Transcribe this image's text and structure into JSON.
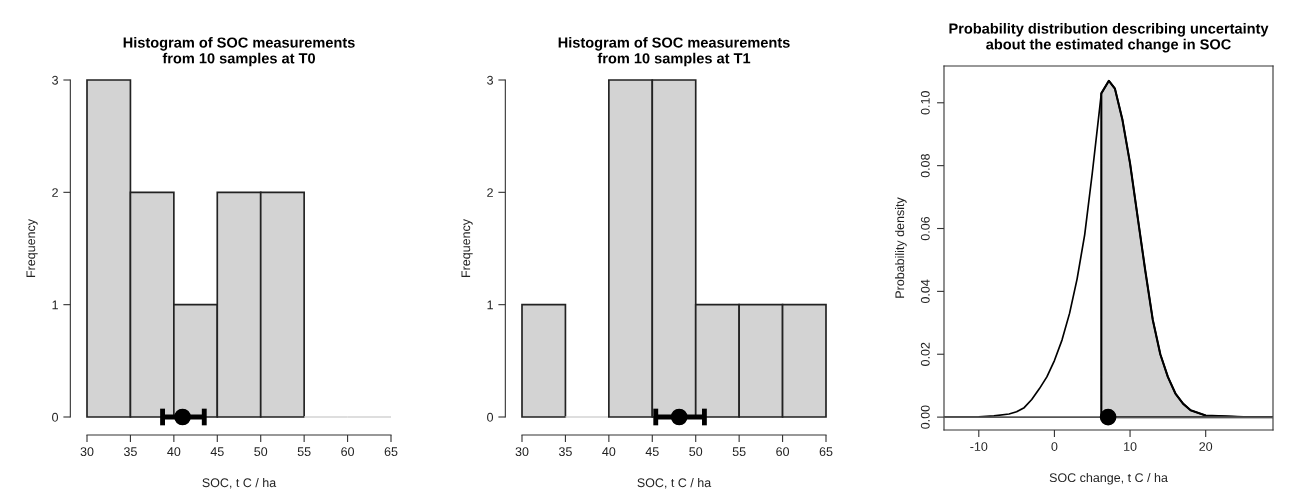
{
  "chart_data": [
    {
      "type": "histogram",
      "title": "Histogram of SOC measurements\nfrom 10 samples at T0",
      "xlabel": "SOC, t C / ha",
      "ylabel": "Frequency",
      "bins": [
        30,
        35,
        40,
        45,
        50,
        55,
        60,
        65
      ],
      "values": [
        3,
        2,
        1,
        2,
        2,
        0,
        0
      ],
      "color": "#d3d3d3",
      "xlim": [
        30,
        65
      ],
      "ylim": [
        0,
        3
      ],
      "xticks": [
        30,
        35,
        40,
        45,
        50,
        55,
        60,
        65
      ],
      "yticks": [
        0,
        1,
        2,
        3
      ],
      "series": [
        {
          "type": "scatter",
          "color": "#000000",
          "marker": "circle",
          "x": [
            41
          ],
          "values": [
            0
          ],
          "xerrors": [
            [
              38.7,
              43.5
            ]
          ]
        }
      ]
    },
    {
      "type": "histogram",
      "title": "Histogram of SOC measurements\nfrom 10 samples at T1",
      "xlabel": "SOC, t C / ha",
      "ylabel": "Frequency",
      "bins": [
        30,
        35,
        40,
        45,
        50,
        55,
        60,
        65
      ],
      "values": [
        1,
        0,
        3,
        3,
        1,
        1,
        1
      ],
      "color": "#d3d3d3",
      "xlim": [
        30,
        65
      ],
      "ylim": [
        0,
        3
      ],
      "xticks": [
        30,
        35,
        40,
        45,
        50,
        55,
        60,
        65
      ],
      "yticks": [
        0,
        1,
        2,
        3
      ],
      "series": [
        {
          "type": "scatter",
          "color": "#000000",
          "marker": "circle",
          "x": [
            48.1
          ],
          "values": [
            0
          ],
          "xerrors": [
            [
              45.4,
              51.0
            ]
          ]
        }
      ]
    },
    {
      "type": "area",
      "title": "Probability distribution describing uncertainty\nabout the estimated change in SOC",
      "xlabel": "SOC change, t C / ha",
      "ylabel": "Probability density",
      "xlim": [
        -14.6,
        28.9
      ],
      "ylim": [
        -0.0041,
        0.1117
      ],
      "xticks": [
        -10,
        0,
        10,
        20
      ],
      "yticks": [
        {
          "value": 0,
          "label": "0.00"
        },
        {
          "value": 0.02,
          "label": "0.02"
        },
        {
          "value": 0.04,
          "label": "0.04"
        },
        {
          "value": 0.06,
          "label": "0.06"
        },
        {
          "value": 0.08,
          "label": "0.08"
        },
        {
          "value": 0.1,
          "label": "0.10"
        }
      ],
      "ref_lines": [
        {
          "axis": "y",
          "value": 0,
          "color": "#555555"
        }
      ],
      "series": [
        {
          "type": "area",
          "color": "#d3d3d3",
          "x": [
            6.2,
            7.2,
            8,
            9,
            10,
            11,
            12,
            13,
            14,
            15,
            16,
            17,
            18,
            20,
            25,
            28.9
          ],
          "values": [
            0.103,
            0.107,
            0.1045,
            0.0945,
            0.0807,
            0.0637,
            0.0468,
            0.031,
            0.02,
            0.0128,
            0.0075,
            0.0043,
            0.0022,
            0.0005,
            0,
            0
          ]
        },
        {
          "type": "line",
          "color": "#000000",
          "x": [
            -14.6,
            -10,
            -8,
            -6,
            -5,
            -4,
            -3,
            -2,
            -1,
            0,
            1,
            2,
            3,
            4,
            5,
            6,
            6.2,
            7.2,
            8,
            9,
            10,
            11,
            12,
            13,
            14,
            15,
            16,
            17,
            18,
            20,
            25,
            28.9
          ],
          "values": [
            0,
            0.0001,
            0.0004,
            0.001,
            0.0017,
            0.003,
            0.0056,
            0.009,
            0.0128,
            0.018,
            0.0245,
            0.033,
            0.044,
            0.058,
            0.0775,
            0.0987,
            0.103,
            0.107,
            0.1045,
            0.0945,
            0.0807,
            0.0637,
            0.0468,
            0.031,
            0.02,
            0.0128,
            0.0075,
            0.0043,
            0.0022,
            0.0005,
            0,
            0
          ]
        },
        {
          "type": "scatter",
          "color": "#000000",
          "marker": "circle",
          "x": [
            7.1
          ],
          "values": [
            0
          ]
        }
      ]
    }
  ]
}
